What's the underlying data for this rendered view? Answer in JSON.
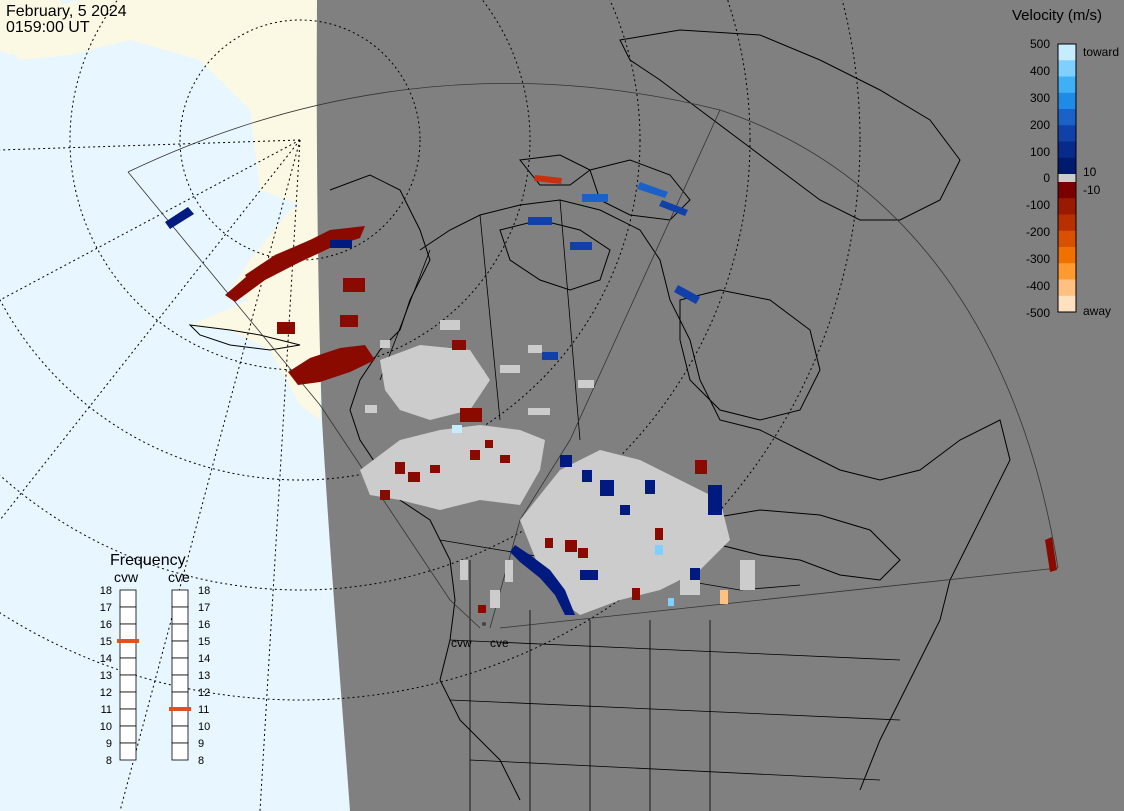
{
  "header": {
    "date": "February, 5 2024",
    "time": "0159:00 UT"
  },
  "velocity_legend": {
    "title": "Velocity (m/s)",
    "toward_label": "toward",
    "away_label": "away",
    "ticks": [
      "500",
      "400",
      "300",
      "200",
      "100",
      "10",
      "0",
      "-10",
      "-100",
      "-200",
      "-300",
      "-400",
      "-500"
    ],
    "colors_toward": [
      "#c8ecff",
      "#7fd0ff",
      "#3fb0f5",
      "#1e8ce6",
      "#1a62c8",
      "#1040a8",
      "#082a8a",
      "#001a70"
    ],
    "colors_away": [
      "#7a0000",
      "#9a1a00",
      "#b83000",
      "#d85000",
      "#f07000",
      "#ff9a30",
      "#ffc080",
      "#ffe0c0"
    ]
  },
  "frequency_panel": {
    "title": "Frequency",
    "radars": [
      {
        "name": "cvw",
        "frequency_mhz": 15
      },
      {
        "name": "cve",
        "frequency_mhz": 11
      }
    ],
    "scale": [
      "18",
      "17",
      "16",
      "15",
      "14",
      "13",
      "12",
      "11",
      "10",
      "9",
      "8"
    ],
    "marker_color": "#e05020"
  },
  "map": {
    "site_labels": [
      "cvw",
      "cve"
    ],
    "colors": {
      "ocean_day": "#e8f6ff",
      "land_day": "#fbf8e4",
      "night": "#808080",
      "ground_scatter": "#cccccc",
      "coastline": "#000000"
    }
  }
}
